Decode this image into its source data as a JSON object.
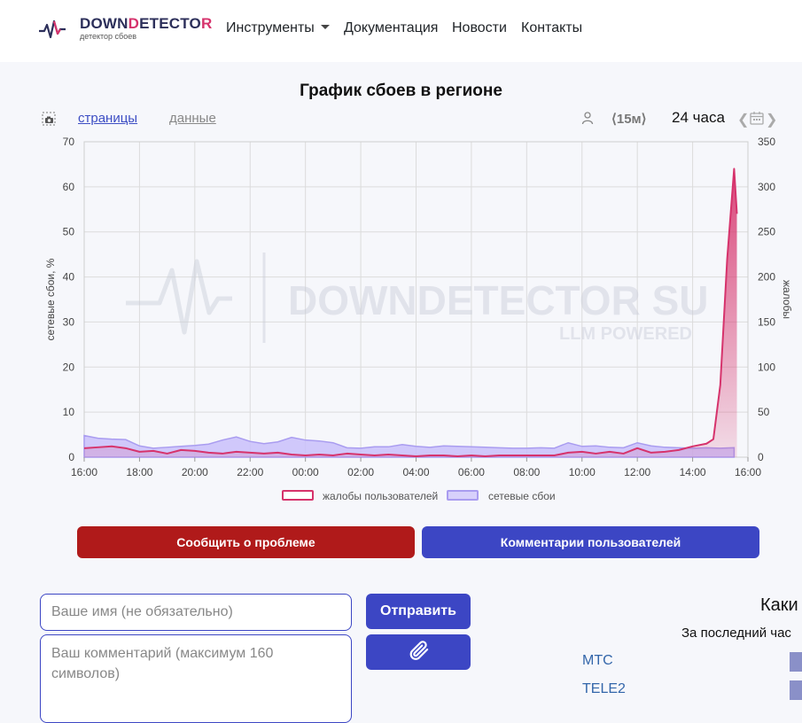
{
  "header": {
    "logo_part1": "DOWN",
    "logo_accent1": "D",
    "logo_part2": "ETECTO",
    "logo_accent2": "R",
    "logo_subtitle": "детектор сбоев",
    "nav": [
      "Инструменты",
      "Документация",
      "Новости",
      "Контакты"
    ]
  },
  "chart_header": {
    "title": "График сбоев в регионе",
    "tab_pages": "страницы",
    "tab_data": "данные",
    "interval": "⟨15м⟩",
    "period": "24 часа"
  },
  "chart_data": {
    "type": "area",
    "xlabel": "",
    "ylabel": "сетевые сбои, %",
    "y2label": "жалобы",
    "ylim": [
      0,
      70
    ],
    "y2lim": [
      0,
      350
    ],
    "y_ticks": [
      0,
      10,
      20,
      30,
      40,
      50,
      60,
      70
    ],
    "y2_ticks": [
      0,
      50,
      100,
      150,
      200,
      250,
      300,
      350
    ],
    "x_ticks": [
      "16:00",
      "18:00",
      "20:00",
      "22:00",
      "00:00",
      "02:00",
      "04:00",
      "06:00",
      "08:00",
      "10:00",
      "12:00",
      "14:00",
      "16:00"
    ],
    "x_range_hours": [
      0,
      24
    ],
    "series": [
      {
        "name": "сетевые сбои",
        "axis": "left",
        "color": "#a99cf0",
        "x": [
          0,
          0.5,
          1,
          1.5,
          2,
          2.5,
          3,
          3.5,
          4,
          4.5,
          5,
          5.5,
          6,
          6.5,
          7,
          7.5,
          8,
          8.5,
          9,
          9.5,
          10,
          10.5,
          11,
          11.5,
          12,
          12.5,
          13,
          13.5,
          14,
          14.5,
          15,
          15.5,
          16,
          16.5,
          17,
          17.5,
          18,
          18.5,
          19,
          19.5,
          20,
          20.5,
          21,
          21.5,
          22,
          22.5,
          23,
          23.5
        ],
        "values": [
          4.8,
          4.2,
          4.0,
          3.9,
          2.5,
          2.0,
          2.2,
          2.4,
          2.6,
          2.9,
          3.8,
          4.5,
          3.5,
          3.0,
          3.4,
          4.4,
          3.8,
          3.6,
          3.2,
          2.1,
          2.0,
          2.3,
          2.3,
          2.8,
          2.4,
          2.2,
          2.5,
          2.4,
          2.3,
          2.2,
          2.1,
          2.0,
          2.0,
          2.1,
          2.0,
          3.2,
          2.4,
          2.5,
          2.2,
          2.1,
          3.2,
          2.5,
          2.2,
          2.1,
          2.0,
          2.1,
          2.0,
          2.1
        ]
      },
      {
        "name": "жалобы пользователей",
        "axis": "right",
        "color": "#d6336c",
        "x": [
          0,
          0.5,
          1,
          1.5,
          2,
          2.5,
          3,
          3.5,
          4,
          4.5,
          5,
          5.5,
          6,
          6.5,
          7,
          7.5,
          8,
          8.5,
          9,
          9.5,
          10,
          10.5,
          11,
          11.5,
          12,
          12.5,
          13,
          13.5,
          14,
          14.5,
          15,
          15.5,
          16,
          16.5,
          17,
          17.5,
          18,
          18.5,
          19,
          19.5,
          20,
          20.5,
          21,
          21.5,
          22,
          22.5,
          22.75,
          23,
          23.25,
          23.5,
          23.6
        ],
        "values": [
          10,
          11,
          12,
          10,
          6,
          7,
          4,
          8,
          7,
          5,
          4,
          6,
          5,
          4,
          5,
          3,
          2,
          3,
          2,
          4,
          3,
          2,
          3,
          2,
          1,
          2,
          2,
          1,
          2,
          1,
          2,
          2,
          2,
          2,
          2,
          5,
          6,
          4,
          6,
          4,
          10,
          5,
          6,
          8,
          12,
          15,
          20,
          80,
          220,
          320,
          270
        ]
      }
    ],
    "legend": [
      "жалобы пользователей",
      "сетевые сбои"
    ],
    "legend_position": "bottom",
    "grid": true
  },
  "watermark": {
    "text": "DOWNDETECTOR SU",
    "sub": "LLM POWERED"
  },
  "actions": {
    "report": "Сообщить о проблеме",
    "comments": "Комментарии пользователей"
  },
  "form": {
    "name_placeholder": "Ваше имя (не обязательно)",
    "comment_placeholder": "Ваш комментарий (максимум 160 символов)",
    "send": "Отправить"
  },
  "side": {
    "title": "Каки",
    "subtitle": "За последний час",
    "operators": [
      "МТС",
      "TELE2"
    ]
  },
  "colors": {
    "accent": "#3c46c4",
    "danger": "#b01a1a",
    "complaints": "#d6336c",
    "outages": "#a99cf0"
  }
}
